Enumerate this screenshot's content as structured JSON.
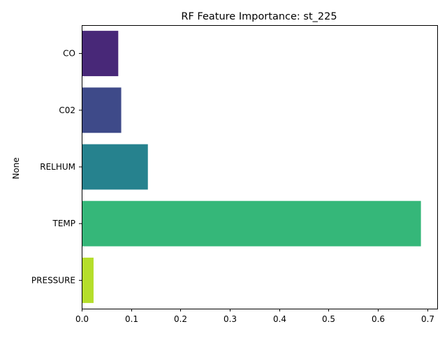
{
  "chart_data": {
    "type": "bar",
    "orientation": "horizontal",
    "title": "RF Feature Importance: st_225",
    "xlabel": "",
    "ylabel": "None",
    "categories": [
      "CO",
      "C02",
      "RELHUM",
      "TEMP",
      "PRESSURE"
    ],
    "values": [
      0.074,
      0.08,
      0.134,
      0.687,
      0.024
    ],
    "colors": [
      "#482878",
      "#3e4a89",
      "#26828e",
      "#35b779",
      "#b5de2b"
    ],
    "xlim": [
      0,
      0.72
    ],
    "xticks": [
      0.0,
      0.1,
      0.2,
      0.3,
      0.4,
      0.5,
      0.6,
      0.7
    ],
    "xtick_labels": [
      "0.0",
      "0.1",
      "0.2",
      "0.3",
      "0.4",
      "0.5",
      "0.6",
      "0.7"
    ],
    "grid": false,
    "legend": "none",
    "palette": "viridis"
  }
}
